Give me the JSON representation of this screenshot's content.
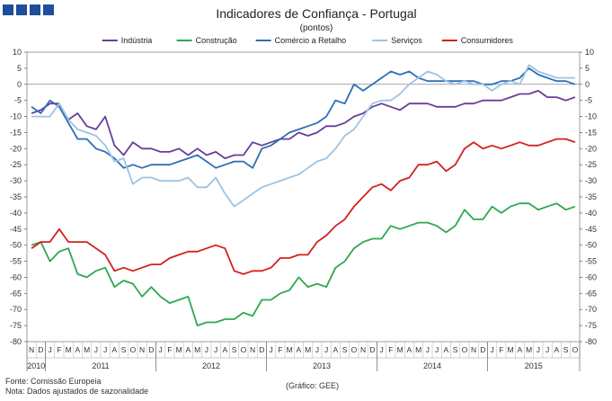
{
  "header": {
    "title": "Indicadores de Confiança - Portugal",
    "subtitle": "(pontos)",
    "logo_color": "#1f4e9a"
  },
  "footer": {
    "source": "Fonte: Comissão Europeia",
    "note": "Nota: Dados ajustados de sazonalidade",
    "credit": "(Gráfico: GEE)"
  },
  "chart_data": {
    "type": "line",
    "ylim": [
      -80,
      10
    ],
    "yticks": [
      10,
      5,
      0,
      -5,
      -10,
      -15,
      -20,
      -25,
      -30,
      -35,
      -40,
      -45,
      -50,
      -55,
      -60,
      -65,
      -70,
      -75,
      -80
    ],
    "legend_position": "top-center",
    "x": [
      "2010-11",
      "2010-12",
      "2011-01",
      "2011-02",
      "2011-03",
      "2011-04",
      "2011-05",
      "2011-06",
      "2011-07",
      "2011-08",
      "2011-09",
      "2011-10",
      "2011-11",
      "2011-12",
      "2012-01",
      "2012-02",
      "2012-03",
      "2012-04",
      "2012-05",
      "2012-06",
      "2012-07",
      "2012-08",
      "2012-09",
      "2012-10",
      "2012-11",
      "2012-12",
      "2013-01",
      "2013-02",
      "2013-03",
      "2013-04",
      "2013-05",
      "2013-06",
      "2013-07",
      "2013-08",
      "2013-09",
      "2013-10",
      "2013-11",
      "2013-12",
      "2014-01",
      "2014-02",
      "2014-03",
      "2014-04",
      "2014-05",
      "2014-06",
      "2014-07",
      "2014-08",
      "2014-09",
      "2014-10",
      "2014-11",
      "2014-12",
      "2015-01",
      "2015-02",
      "2015-03",
      "2015-04",
      "2015-05",
      "2015-06",
      "2015-07",
      "2015-08",
      "2015-09",
      "2015-10"
    ],
    "month_labels": [
      "N",
      "D",
      "J",
      "F",
      "M",
      "A",
      "M",
      "J",
      "J",
      "A",
      "S",
      "O",
      "N",
      "D",
      "J",
      "F",
      "M",
      "A",
      "M",
      "J",
      "J",
      "A",
      "S",
      "O",
      "N",
      "D",
      "J",
      "F",
      "M",
      "A",
      "M",
      "J",
      "J",
      "A",
      "S",
      "O",
      "N",
      "D",
      "J",
      "F",
      "M",
      "A",
      "M",
      "J",
      "J",
      "A",
      "S",
      "O",
      "N",
      "D",
      "J",
      "F",
      "M",
      "A",
      "M",
      "J",
      "J",
      "A",
      "S",
      "O"
    ],
    "year_labels": [
      {
        "label": "2010",
        "start": 0,
        "end": 1
      },
      {
        "label": "2011",
        "start": 2,
        "end": 13
      },
      {
        "label": "2012",
        "start": 14,
        "end": 25
      },
      {
        "label": "2013",
        "start": 26,
        "end": 37
      },
      {
        "label": "2014",
        "start": 38,
        "end": 49
      },
      {
        "label": "2015",
        "start": 50,
        "end": 59
      }
    ],
    "series": [
      {
        "name": "Indústria",
        "color": "#6a3d9a",
        "values": [
          -9,
          -8,
          -6,
          -6,
          -11,
          -9,
          -13,
          -14,
          -10,
          -19,
          -22,
          -18,
          -20,
          -20,
          -21,
          -21,
          -20,
          -22,
          -20,
          -22,
          -21,
          -23,
          -22,
          -22,
          -18,
          -19,
          -18,
          -17,
          -17,
          -15,
          -16,
          -15,
          -13,
          -13,
          -12,
          -10,
          -9,
          -7,
          -6,
          -7,
          -8,
          -6,
          -6,
          -6,
          -7,
          -7,
          -7,
          -6,
          -6,
          -5,
          -5,
          -5,
          -4,
          -3,
          -3,
          -2,
          -4,
          -4,
          -5,
          -4
        ]
      },
      {
        "name": "Construção",
        "color": "#2ea84f",
        "values": [
          -50,
          -49,
          -55,
          -52,
          -51,
          -59,
          -60,
          -58,
          -57,
          -63,
          -61,
          -62,
          -66,
          -63,
          -66,
          -68,
          -67,
          -66,
          -75,
          -74,
          -74,
          -73,
          -73,
          -71,
          -72,
          -67,
          -67,
          -65,
          -64,
          -60,
          -63,
          -62,
          -63,
          -57,
          -55,
          -51,
          -49,
          -48,
          -48,
          -44,
          -45,
          -44,
          -43,
          -43,
          -44,
          -46,
          -44,
          -39,
          -42,
          -42,
          -38,
          -40,
          -38,
          -37,
          -37,
          -39,
          -38,
          -37,
          -39,
          -38
        ]
      },
      {
        "name": "Comércio a Retalho",
        "color": "#2f6fb5",
        "values": [
          -7,
          -9,
          -5,
          -7,
          -12,
          -17,
          -17,
          -20,
          -21,
          -23,
          -26,
          -25,
          -26,
          -25,
          -25,
          -25,
          -24,
          -23,
          -22,
          -24,
          -26,
          -25,
          -24,
          -24,
          -26,
          -20,
          -19,
          -17,
          -15,
          -14,
          -13,
          -12,
          -10,
          -5,
          -6,
          0,
          -2,
          0,
          2,
          4,
          3,
          4,
          2,
          1,
          1,
          1,
          1,
          1,
          1,
          0,
          0,
          1,
          1,
          2,
          5,
          3,
          2,
          1,
          1,
          0
        ]
      },
      {
        "name": "Serviços",
        "color": "#9cc4e4",
        "values": [
          -10,
          -10,
          -10,
          -6,
          -11,
          -14,
          -15,
          -16,
          -19,
          -24,
          -23,
          -31,
          -29,
          -29,
          -30,
          -30,
          -30,
          -29,
          -32,
          -32,
          -29,
          -34,
          -38,
          -36,
          -34,
          -32,
          -31,
          -30,
          -29,
          -28,
          -26,
          -24,
          -23,
          -20,
          -16,
          -14,
          -10,
          -6,
          -5,
          -5,
          -3,
          0,
          2,
          4,
          3,
          1,
          0,
          1,
          0,
          0,
          -2,
          0,
          1,
          0,
          6,
          4,
          3,
          2,
          2,
          2
        ]
      },
      {
        "name": "Consumidores",
        "color": "#d42020",
        "values": [
          -51,
          -49,
          -49,
          -45,
          -49,
          -49,
          -49,
          -51,
          -53,
          -58,
          -57,
          -58,
          -57,
          -56,
          -56,
          -54,
          -53,
          -52,
          -52,
          -51,
          -50,
          -51,
          -58,
          -59,
          -58,
          -58,
          -57,
          -54,
          -54,
          -53,
          -53,
          -49,
          -47,
          -44,
          -42,
          -38,
          -35,
          -32,
          -31,
          -33,
          -30,
          -29,
          -25,
          -25,
          -24,
          -27,
          -25,
          -20,
          -18,
          -20,
          -19,
          -20,
          -19,
          -18,
          -19,
          -19,
          -18,
          -17,
          -17,
          -18
        ]
      }
    ]
  }
}
